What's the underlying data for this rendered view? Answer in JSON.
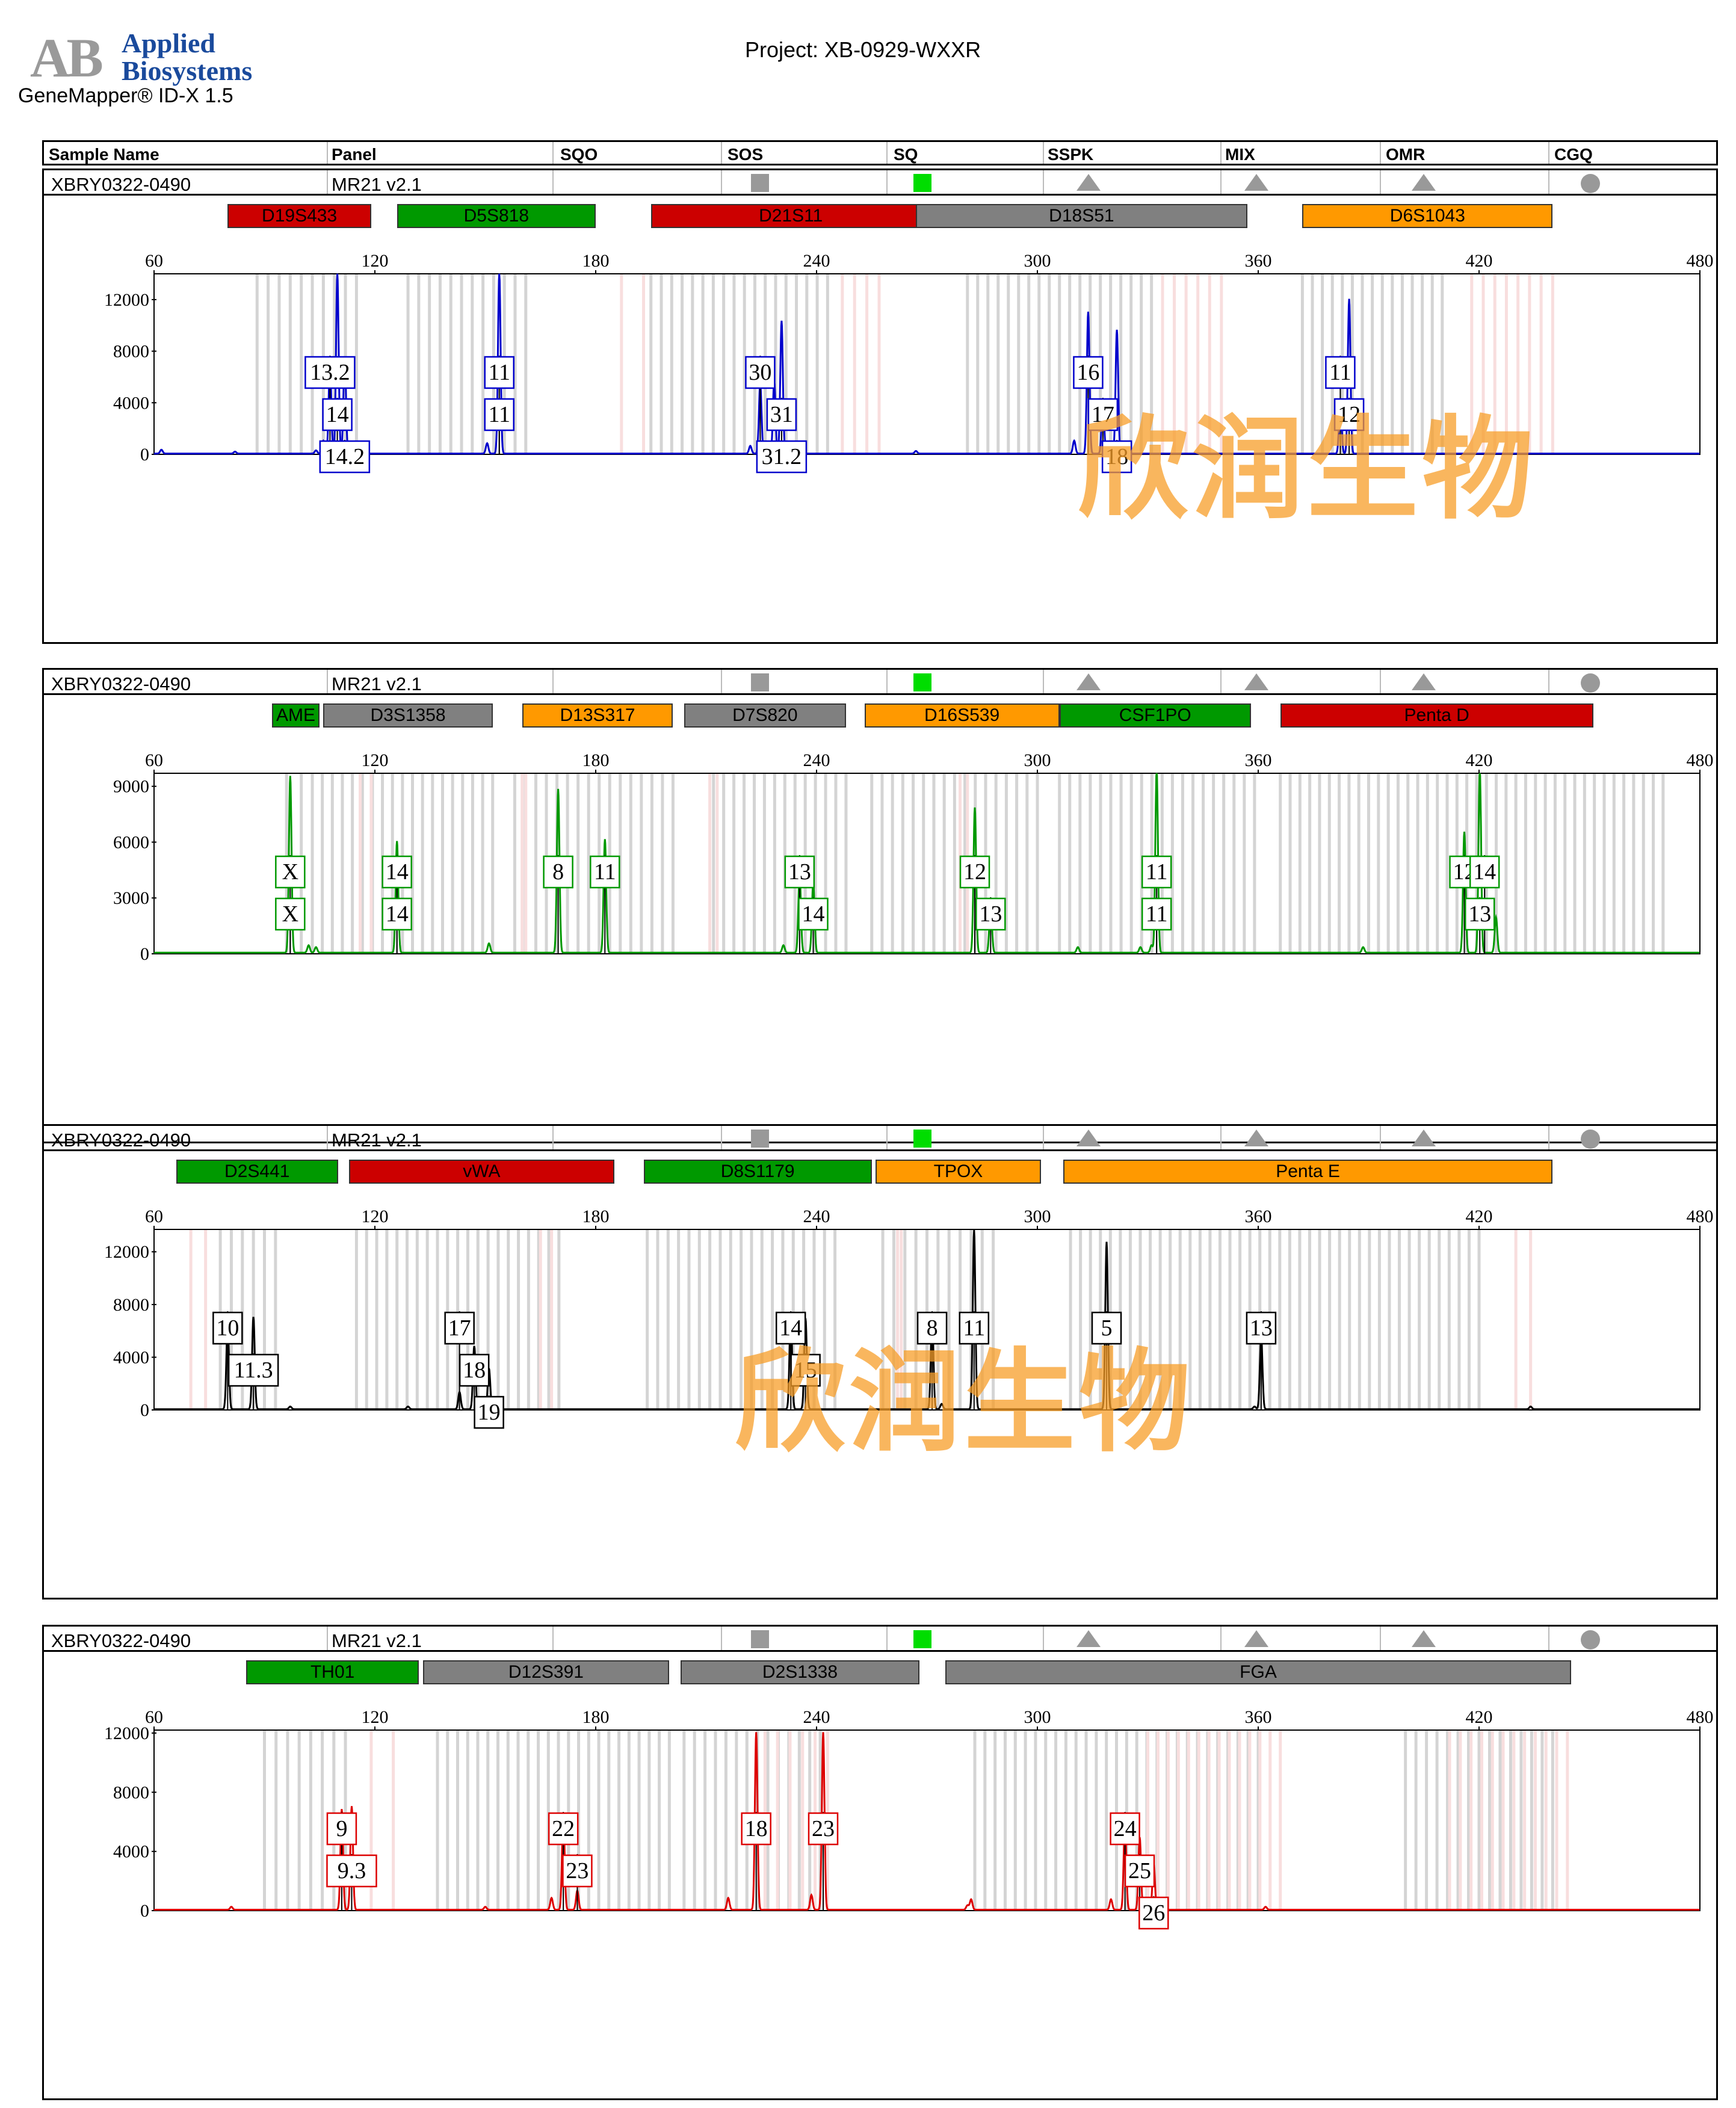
{
  "header": {
    "logo_letters": "AB",
    "logo_text_line1": "Applied",
    "logo_text_line2": "Biosystems",
    "app_name": "GeneMapper® ID-X  1.5",
    "project": "Project: XB-0929-WXXR"
  },
  "columns": [
    "Sample Name",
    "Panel",
    "SQO",
    "SOS",
    "SQ",
    "SSPK",
    "MIX",
    "OMR",
    "CGQ"
  ],
  "colors": {
    "red": "#cc0000",
    "green": "#009900",
    "gray": "#808080",
    "orange": "#ff9900",
    "quality_green": "#00dd00",
    "quality_gray": "#999999"
  },
  "quality_icons": [
    "gray-square",
    "green-square",
    "gray-triangle",
    "gray-triangle",
    "gray-triangle",
    "gray-circle"
  ],
  "watermark": "欣润生物",
  "panels": [
    {
      "sample_name": "XBRY0322-0490",
      "panel": "MR21  v2.1",
      "dye_color": "#0000cc",
      "markers": [
        {
          "name": "D19S433",
          "start": 80,
          "end": 119,
          "color": "red"
        },
        {
          "name": "D5S818",
          "start": 126,
          "end": 180,
          "color": "green"
        },
        {
          "name": "D21S11",
          "start": 195,
          "end": 271,
          "color": "red"
        },
        {
          "name": "D18S51",
          "start": 267,
          "end": 357,
          "color": "gray"
        },
        {
          "name": "D6S1043",
          "start": 372,
          "end": 440,
          "color": "orange"
        }
      ],
      "chart_data": {
        "type": "line",
        "xlim": [
          60,
          480
        ],
        "xticks": [
          "60",
          "120",
          "180",
          "240",
          "300",
          "360",
          "420",
          "480"
        ],
        "ylim": [
          0,
          14000
        ],
        "yticks": [
          "0",
          "4000",
          "8000",
          "12000"
        ],
        "peaks": [
          {
            "x": 62,
            "y": 300
          },
          {
            "x": 82,
            "y": 150
          },
          {
            "x": 104,
            "y": 250
          },
          {
            "x": 106,
            "y": 1000
          },
          {
            "x": 107.8,
            "y": 7000
          },
          {
            "x": 109.8,
            "y": 14000
          },
          {
            "x": 111.8,
            "y": 7400
          },
          {
            "x": 150.5,
            "y": 800
          },
          {
            "x": 153.8,
            "y": 14000
          },
          {
            "x": 222,
            "y": 600
          },
          {
            "x": 224.7,
            "y": 5500
          },
          {
            "x": 228.5,
            "y": 5600
          },
          {
            "x": 230.5,
            "y": 10300
          },
          {
            "x": 267,
            "y": 200
          },
          {
            "x": 310,
            "y": 1000
          },
          {
            "x": 313.8,
            "y": 11000
          },
          {
            "x": 317.8,
            "y": 4000
          },
          {
            "x": 321.6,
            "y": 9600
          },
          {
            "x": 382.3,
            "y": 4000
          },
          {
            "x": 384.7,
            "y": 12000
          }
        ],
        "bins_gray": [
          [
            88,
            115
          ],
          [
            129,
            161
          ],
          [
            195,
            243
          ],
          [
            281,
            331
          ],
          [
            372,
            410
          ]
        ],
        "bins_pink": [
          [
            187,
            193
          ],
          [
            247,
            257
          ],
          [
            334,
            350
          ],
          [
            418,
            440
          ]
        ]
      },
      "alleles": [
        {
          "label": "13.2",
          "x": 107.8,
          "row": 1
        },
        {
          "label": "14",
          "x": 109.8,
          "row": 2
        },
        {
          "label": "14.2",
          "x": 111.8,
          "row": 3
        },
        {
          "label": "11",
          "x": 153.8,
          "row": 1
        },
        {
          "label": "11",
          "x": 153.8,
          "row": 2
        },
        {
          "label": "30",
          "x": 224.7,
          "row": 1
        },
        {
          "label": "31",
          "x": 230.5,
          "row": 2
        },
        {
          "label": "31.2",
          "x": 230.5,
          "row": 3
        },
        {
          "label": "16",
          "x": 313.8,
          "row": 1
        },
        {
          "label": "17",
          "x": 317.8,
          "row": 2
        },
        {
          "label": "18",
          "x": 321.6,
          "row": 3
        },
        {
          "label": "11",
          "x": 382.3,
          "row": 1
        },
        {
          "label": "12",
          "x": 384.7,
          "row": 2
        }
      ]
    },
    {
      "sample_name": "XBRY0322-0490",
      "panel": "MR21  v2.1",
      "dye_color": "#009900",
      "markers": [
        {
          "name": "AME",
          "start": 92,
          "end": 105,
          "color": "green"
        },
        {
          "name": "D3S1358",
          "start": 106,
          "end": 152,
          "color": "gray"
        },
        {
          "name": "D13S317",
          "start": 160,
          "end": 201,
          "color": "orange"
        },
        {
          "name": "D7S820",
          "start": 204,
          "end": 248,
          "color": "gray"
        },
        {
          "name": "D16S539",
          "start": 253,
          "end": 306,
          "color": "orange"
        },
        {
          "name": "CSF1PO",
          "start": 306,
          "end": 358,
          "color": "green"
        },
        {
          "name": "Penta D",
          "start": 366,
          "end": 451,
          "color": "red"
        }
      ],
      "chart_data": {
        "type": "line",
        "xlim": [
          60,
          480
        ],
        "xticks": [
          "60",
          "120",
          "180",
          "240",
          "300",
          "360",
          "420",
          "480"
        ],
        "ylim": [
          0,
          9700
        ],
        "yticks": [
          "0",
          "3000",
          "6000",
          "9000"
        ],
        "peaks": [
          {
            "x": 97,
            "y": 9500
          },
          {
            "x": 102,
            "y": 400
          },
          {
            "x": 104,
            "y": 300
          },
          {
            "x": 126,
            "y": 6000
          },
          {
            "x": 151,
            "y": 500
          },
          {
            "x": 169.8,
            "y": 8800
          },
          {
            "x": 182.5,
            "y": 6100
          },
          {
            "x": 231,
            "y": 400
          },
          {
            "x": 235.4,
            "y": 4200
          },
          {
            "x": 239.1,
            "y": 3800
          },
          {
            "x": 283,
            "y": 7800
          },
          {
            "x": 287.3,
            "y": 2600
          },
          {
            "x": 311,
            "y": 300
          },
          {
            "x": 328,
            "y": 300
          },
          {
            "x": 331,
            "y": 400
          },
          {
            "x": 332.4,
            "y": 9900
          },
          {
            "x": 388.5,
            "y": 300
          },
          {
            "x": 416,
            "y": 6500
          },
          {
            "x": 420.2,
            "y": 9900
          },
          {
            "x": 424.6,
            "y": 1900
          }
        ],
        "bins_gray": [
          [
            96,
            100
          ],
          [
            103,
            152
          ],
          [
            158,
            201
          ],
          [
            212,
            248
          ],
          [
            255,
            300
          ],
          [
            306,
            359
          ],
          [
            366,
            470
          ]
        ],
        "bins_pink": [
          [
            116,
            119
          ],
          [
            160,
            161
          ],
          [
            211,
            213
          ],
          [
            279,
            281
          ]
        ]
      },
      "alleles": [
        {
          "label": "X",
          "x": 97,
          "row": 1
        },
        {
          "label": "X",
          "x": 97,
          "row": 2
        },
        {
          "label": "14",
          "x": 126,
          "row": 1
        },
        {
          "label": "14",
          "x": 126,
          "row": 2
        },
        {
          "label": "8",
          "x": 169.8,
          "row": 1
        },
        {
          "label": "11",
          "x": 182.5,
          "row": 1
        },
        {
          "label": "13",
          "x": 235.4,
          "row": 1
        },
        {
          "label": "14",
          "x": 239.1,
          "row": 2
        },
        {
          "label": "12",
          "x": 283,
          "row": 1
        },
        {
          "label": "13",
          "x": 287.3,
          "row": 2
        },
        {
          "label": "11",
          "x": 332.4,
          "row": 1
        },
        {
          "label": "11",
          "x": 332.4,
          "row": 2
        },
        {
          "label": "12",
          "x": 416,
          "row": 1
        },
        {
          "label": "14",
          "x": 421.5,
          "row": 1
        },
        {
          "label": "13",
          "x": 420.2,
          "row": 2
        }
      ]
    },
    {
      "sample_name": "XBRY0322-0490",
      "panel": "MR21  v2.1",
      "dye_color": "#000000",
      "markers": [
        {
          "name": "D2S441",
          "start": 66,
          "end": 110,
          "color": "green"
        },
        {
          "name": "vWA",
          "start": 113,
          "end": 185,
          "color": "red"
        },
        {
          "name": "D8S1179",
          "start": 193,
          "end": 255,
          "color": "green"
        },
        {
          "name": "TPOX",
          "start": 256,
          "end": 301,
          "color": "orange"
        },
        {
          "name": "Penta E",
          "start": 307,
          "end": 440,
          "color": "orange"
        }
      ],
      "chart_data": {
        "type": "line",
        "xlim": [
          60,
          480
        ],
        "xticks": [
          "60",
          "120",
          "180",
          "240",
          "300",
          "360",
          "420",
          "480"
        ],
        "ylim": [
          0,
          13700
        ],
        "yticks": [
          "0",
          "4000",
          "8000",
          "12000"
        ],
        "peaks": [
          {
            "x": 80,
            "y": 6500
          },
          {
            "x": 87,
            "y": 7000
          },
          {
            "x": 97,
            "y": 200
          },
          {
            "x": 129,
            "y": 200
          },
          {
            "x": 143,
            "y": 1300
          },
          {
            "x": 147,
            "y": 4800
          },
          {
            "x": 151,
            "y": 3100
          },
          {
            "x": 233,
            "y": 7300
          },
          {
            "x": 237,
            "y": 6900
          },
          {
            "x": 271.4,
            "y": 7200
          },
          {
            "x": 274,
            "y": 400
          },
          {
            "x": 282.8,
            "y": 13600
          },
          {
            "x": 318.8,
            "y": 12700
          },
          {
            "x": 359,
            "y": 200
          },
          {
            "x": 360.8,
            "y": 5600
          },
          {
            "x": 434,
            "y": 200
          }
        ],
        "bins_gray": [
          [
            78,
            93
          ],
          [
            115,
            170
          ],
          [
            194,
            245
          ],
          [
            258,
            288
          ],
          [
            309,
            420
          ]
        ],
        "bins_pink": [
          [
            70,
            74
          ],
          [
            165,
            168
          ],
          [
            262,
            263
          ],
          [
            430,
            434
          ]
        ]
      },
      "alleles": [
        {
          "label": "10",
          "x": 80,
          "row": 1
        },
        {
          "label": "11.3",
          "x": 87,
          "row": 2
        },
        {
          "label": "17",
          "x": 143,
          "row": 1
        },
        {
          "label": "18",
          "x": 147,
          "row": 2
        },
        {
          "label": "19",
          "x": 151,
          "row": 3
        },
        {
          "label": "14",
          "x": 233,
          "row": 1
        },
        {
          "label": "15",
          "x": 237,
          "row": 2
        },
        {
          "label": "8",
          "x": 271.4,
          "row": 1
        },
        {
          "label": "11",
          "x": 282.8,
          "row": 1
        },
        {
          "label": "5",
          "x": 318.8,
          "row": 1
        },
        {
          "label": "13",
          "x": 360.8,
          "row": 1
        }
      ]
    },
    {
      "sample_name": "XBRY0322-0490",
      "panel": "MR21  v2.1",
      "dye_color": "#dd0000",
      "markers": [
        {
          "name": "TH01",
          "start": 85,
          "end": 132,
          "color": "green"
        },
        {
          "name": "D12S391",
          "start": 133,
          "end": 200,
          "color": "gray"
        },
        {
          "name": "D2S1338",
          "start": 203,
          "end": 268,
          "color": "gray"
        },
        {
          "name": "FGA",
          "start": 275,
          "end": 445,
          "color": "gray"
        }
      ],
      "chart_data": {
        "type": "line",
        "xlim": [
          60,
          480
        ],
        "xticks": [
          "60",
          "120",
          "180",
          "240",
          "300",
          "360",
          "420",
          "480"
        ],
        "ylim": [
          0,
          12200
        ],
        "yticks": [
          "0",
          "4000",
          "8000",
          "12000"
        ],
        "peaks": [
          {
            "x": 81,
            "y": 200
          },
          {
            "x": 111,
            "y": 6800
          },
          {
            "x": 113.7,
            "y": 7000
          },
          {
            "x": 150,
            "y": 200
          },
          {
            "x": 168,
            "y": 800
          },
          {
            "x": 171.2,
            "y": 6500
          },
          {
            "x": 175,
            "y": 1300
          },
          {
            "x": 216,
            "y": 800
          },
          {
            "x": 223.6,
            "y": 12000
          },
          {
            "x": 238.6,
            "y": 1000
          },
          {
            "x": 241.8,
            "y": 12000
          },
          {
            "x": 281,
            "y": 300
          },
          {
            "x": 282,
            "y": 700
          },
          {
            "x": 320,
            "y": 700
          },
          {
            "x": 323.8,
            "y": 6000
          },
          {
            "x": 327.8,
            "y": 4900
          },
          {
            "x": 331.6,
            "y": 3100
          },
          {
            "x": 362,
            "y": 200
          }
        ],
        "bins_gray": [
          [
            90,
            112
          ],
          [
            137,
            200
          ],
          [
            204,
            241
          ],
          [
            283,
            360
          ],
          [
            400,
            440
          ]
        ],
        "bins_pink": [
          [
            119,
            125
          ],
          [
            226,
            243
          ],
          [
            330,
            366
          ],
          [
            412,
            444
          ]
        ]
      },
      "alleles": [
        {
          "label": "9",
          "x": 111,
          "row": 1
        },
        {
          "label": "9.3",
          "x": 113.7,
          "row": 2
        },
        {
          "label": "22",
          "x": 171.2,
          "row": 1
        },
        {
          "label": "23",
          "x": 175,
          "row": 2
        },
        {
          "label": "18",
          "x": 223.6,
          "row": 1
        },
        {
          "label": "23",
          "x": 241.8,
          "row": 1
        },
        {
          "label": "24",
          "x": 323.8,
          "row": 1
        },
        {
          "label": "25",
          "x": 327.8,
          "row": 2
        },
        {
          "label": "26",
          "x": 331.6,
          "row": 3
        }
      ]
    }
  ]
}
